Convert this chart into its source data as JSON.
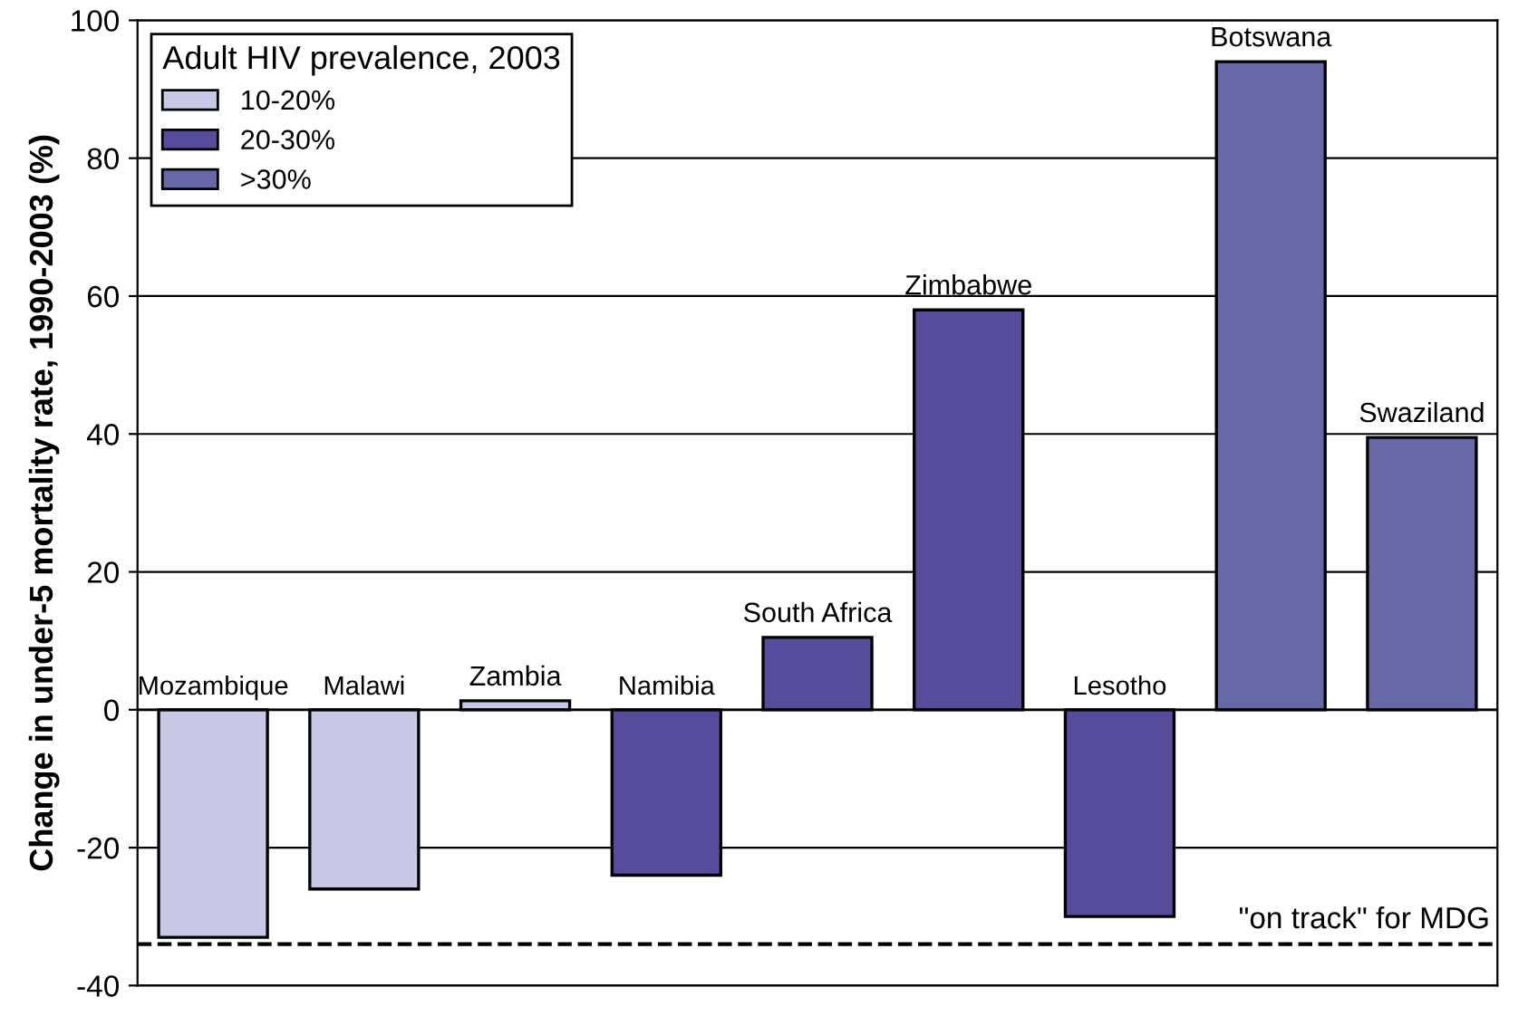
{
  "chart_data": {
    "type": "bar",
    "ylabel": "Change in under-5 mortality rate, 1990-2003 (%)",
    "categories": [
      "Mozambique",
      "Malawi",
      "Zambia",
      "Namibia",
      "South Africa",
      "Zimbabwe",
      "Lesotho",
      "Botswana",
      "Swaziland"
    ],
    "legend_title": "Adult HIV prevalence, 2003",
    "series": [
      {
        "name": "10-20%",
        "color": "#c8c8e6",
        "values": [
          -33,
          -26,
          1.3,
          null,
          null,
          null,
          null,
          null,
          null
        ]
      },
      {
        "name": "20-30%",
        "color": "#574c9c",
        "values": [
          null,
          null,
          null,
          -24,
          10.5,
          58,
          -30,
          null,
          null
        ]
      },
      {
        "name": ">30%",
        "color": "#6868a8",
        "values": [
          null,
          null,
          null,
          null,
          null,
          null,
          null,
          94,
          39.5
        ]
      }
    ],
    "ylim": [
      -40,
      100
    ],
    "yticks": [
      -40,
      -20,
      0,
      20,
      40,
      60,
      80,
      100
    ],
    "grid": "y",
    "legend": "top left",
    "ref_lines": [
      {
        "axis": "y",
        "value": -34,
        "label": "\"on track\" for MDG",
        "color": "#000000",
        "line_style": "dashed"
      }
    ]
  }
}
